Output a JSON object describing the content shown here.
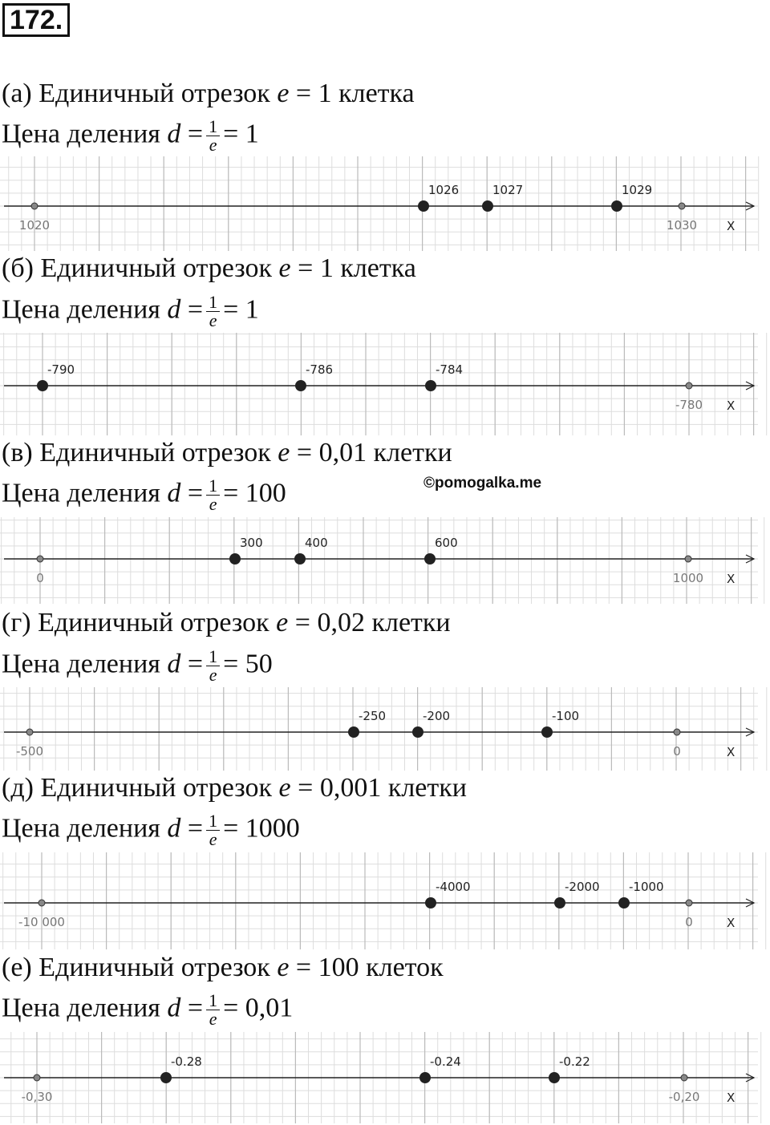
{
  "header": {
    "number": "172."
  },
  "watermark": "©pomogalka.me",
  "sections": [
    {
      "label": "(а)",
      "unit_text": "Единичный отрезок",
      "e_var": "e",
      "eq": "=",
      "e_value": "1",
      "unit_word": "клетка",
      "price_text": "Цена деления",
      "d_var": "d",
      "frac_num": "1",
      "frac_den": "e",
      "d_value": "1",
      "axis_label": "X",
      "points": [
        {
          "label": "1020",
          "big": false
        },
        {
          "label": "1026",
          "big": true
        },
        {
          "label": "1027",
          "big": true
        },
        {
          "label": "1029",
          "big": true
        },
        {
          "label": "1030",
          "big": false
        }
      ]
    },
    {
      "label": "(б)",
      "unit_text": "Единичный отрезок",
      "e_var": "e",
      "eq": "=",
      "e_value": "1",
      "unit_word": "клетка",
      "price_text": "Цена деления",
      "d_var": "d",
      "frac_num": "1",
      "frac_den": "e",
      "d_value": "1",
      "axis_label": "X",
      "points": [
        {
          "label": "-790",
          "big": true
        },
        {
          "label": "-786",
          "big": true
        },
        {
          "label": "-784",
          "big": true
        },
        {
          "label": "-780",
          "big": false
        }
      ]
    },
    {
      "label": "(в)",
      "unit_text": "Единичный отрезок",
      "e_var": "e",
      "eq": "=",
      "e_value": "0,01",
      "unit_word": "клетки",
      "price_text": "Цена деления",
      "d_var": "d",
      "frac_num": "1",
      "frac_den": "e",
      "d_value": "100",
      "axis_label": "X",
      "points": [
        {
          "label": "0",
          "big": false
        },
        {
          "label": "300",
          "big": true
        },
        {
          "label": "400",
          "big": true
        },
        {
          "label": "600",
          "big": true
        },
        {
          "label": "1000",
          "big": false
        }
      ]
    },
    {
      "label": "(г)",
      "unit_text": "Единичный отрезок",
      "e_var": "e",
      "eq": "=",
      "e_value": "0,02",
      "unit_word": "клетки",
      "price_text": "Цена деления",
      "d_var": "d",
      "frac_num": "1",
      "frac_den": "e",
      "d_value": "50",
      "axis_label": "X",
      "points": [
        {
          "label": "-500",
          "big": false
        },
        {
          "label": "-250",
          "big": true
        },
        {
          "label": "-200",
          "big": true
        },
        {
          "label": "-100",
          "big": true
        },
        {
          "label": "0",
          "big": false
        }
      ]
    },
    {
      "label": "(д)",
      "unit_text": "Единичный отрезок",
      "e_var": "e",
      "eq": "=",
      "e_value": "0,001",
      "unit_word": "клетки",
      "price_text": "Цена деления",
      "d_var": "d",
      "frac_num": "1",
      "frac_den": "e",
      "d_value": "1000",
      "axis_label": "X",
      "points": [
        {
          "label": "-10 000",
          "big": false
        },
        {
          "label": "-4000",
          "big": true
        },
        {
          "label": "-2000",
          "big": true
        },
        {
          "label": "-1000",
          "big": true
        },
        {
          "label": "0",
          "big": false
        }
      ]
    },
    {
      "label": "(е)",
      "unit_text": "Единичный отрезок",
      "e_var": "e",
      "eq": "=",
      "e_value": "100",
      "unit_word": "клеток",
      "price_text": "Цена деления",
      "d_var": "d",
      "frac_num": "1",
      "frac_den": "e",
      "d_value": "0,01",
      "axis_label": "X",
      "points": [
        {
          "label": "-0,30",
          "big": false
        },
        {
          "label": "-0.28",
          "big": true
        },
        {
          "label": "-0.24",
          "big": true
        },
        {
          "label": "-0.22",
          "big": true
        },
        {
          "label": "-0,20",
          "big": false
        }
      ]
    }
  ]
}
